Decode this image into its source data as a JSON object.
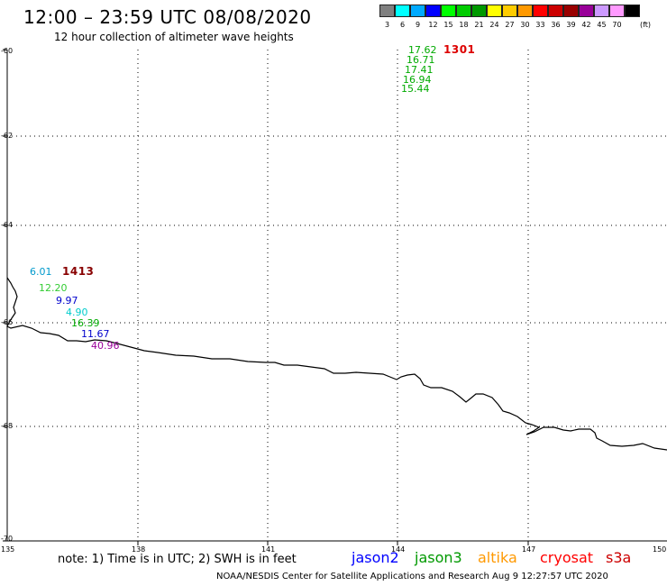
{
  "header": {
    "title": "12:00 – 23:59 UTC 08/08/2020",
    "subtitle": "12 hour collection of altimeter wave heights"
  },
  "legend": {
    "unit": "(ft)",
    "bins": [
      {
        "label": "3",
        "color": "#808080"
      },
      {
        "label": "6",
        "color": "#00ffff"
      },
      {
        "label": "9",
        "color": "#00aaff"
      },
      {
        "label": "12",
        "color": "#0000ff"
      },
      {
        "label": "15",
        "color": "#00ff00"
      },
      {
        "label": "18",
        "color": "#00cc00"
      },
      {
        "label": "21",
        "color": "#009900"
      },
      {
        "label": "24",
        "color": "#ffff00"
      },
      {
        "label": "27",
        "color": "#ffcc00"
      },
      {
        "label": "30",
        "color": "#ff9900"
      },
      {
        "label": "33",
        "color": "#ff0000"
      },
      {
        "label": "36",
        "color": "#cc0000"
      },
      {
        "label": "39",
        "color": "#990000"
      },
      {
        "label": "42",
        "color": "#990099"
      },
      {
        "label": "45",
        "color": "#cc99ff"
      },
      {
        "label": "70",
        "color": "#ff99ff"
      },
      {
        "label": "",
        "color": "#000000"
      }
    ]
  },
  "axes": {
    "lat_labels": [
      "-60",
      "-62",
      "-64",
      "-66",
      "-68",
      "-70"
    ],
    "lon_labels": [
      "135",
      "138",
      "141",
      "144",
      "147",
      "150"
    ]
  },
  "observations": [
    {
      "value": "17.62",
      "color": "#00aa00"
    },
    {
      "value": "16.71",
      "color": "#00aa00"
    },
    {
      "value": "17.41",
      "color": "#00aa00"
    },
    {
      "value": "16.94",
      "color": "#00aa00"
    },
    {
      "value": "15.44",
      "color": "#00aa00"
    },
    {
      "value": "6.01",
      "color": "#0099cc"
    },
    {
      "value": "12.20",
      "color": "#33cc33"
    },
    {
      "value": "9.97",
      "color": "#0000cc"
    },
    {
      "value": "4.90",
      "color": "#00cccc"
    },
    {
      "value": "16.39",
      "color": "#00aa00"
    },
    {
      "value": "11.67",
      "color": "#0000cc"
    },
    {
      "value": "40.96",
      "color": "#990099"
    }
  ],
  "storm_times": [
    {
      "label": "1301",
      "color": "#dd0000"
    },
    {
      "label": "1413",
      "color": "#880000"
    }
  ],
  "footer": {
    "note": "note: 1) Time is in UTC; 2) SWH is in feet",
    "satellites": [
      {
        "name": "jason2",
        "color": "#0000ff"
      },
      {
        "name": "jason3",
        "color": "#009900"
      },
      {
        "name": "altika",
        "color": "#ff9900"
      },
      {
        "name": "cryosat",
        "color": "#ff0000"
      },
      {
        "name": "s3a",
        "color": "#cc0000"
      }
    ],
    "credit": "NOAA/NESDIS Center for Satellite Applications and Research    Aug  9 12:27:57 UTC 2020"
  }
}
